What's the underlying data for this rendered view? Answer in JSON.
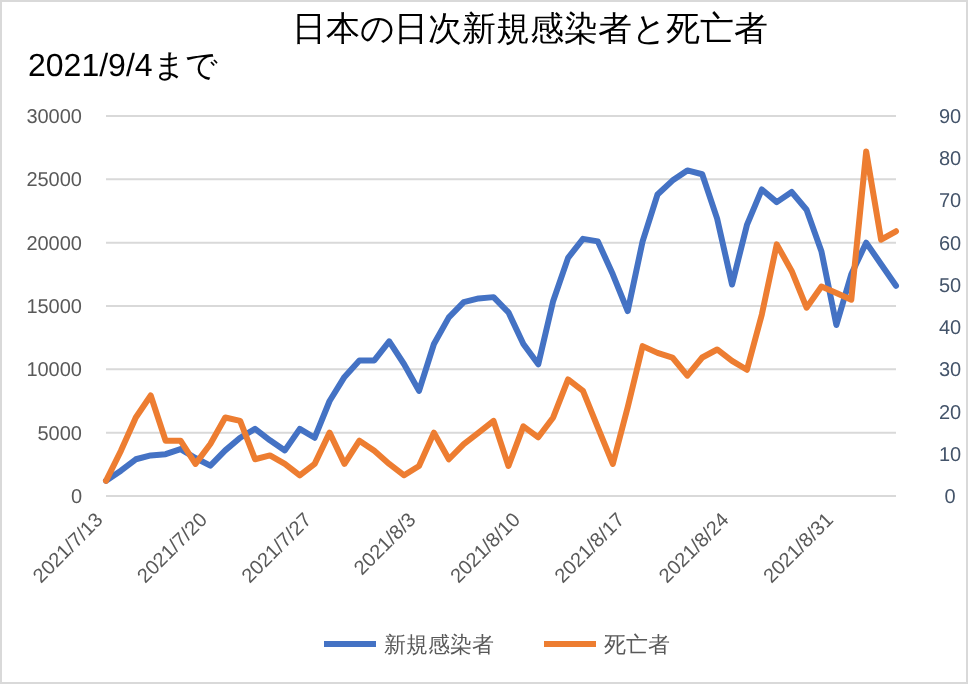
{
  "chart_data": {
    "type": "line",
    "title": "日本の日次新規感染者と死亡者",
    "subtitle": "2021/9/4まで",
    "x": [
      "2021-07-13",
      "2021-07-14",
      "2021-07-15",
      "2021-07-16",
      "2021-07-17",
      "2021-07-18",
      "2021-07-19",
      "2021-07-20",
      "2021-07-21",
      "2021-07-22",
      "2021-07-23",
      "2021-07-24",
      "2021-07-25",
      "2021-07-26",
      "2021-07-27",
      "2021-07-28",
      "2021-07-29",
      "2021-07-30",
      "2021-07-31",
      "2021-08-01",
      "2021-08-02",
      "2021-08-03",
      "2021-08-04",
      "2021-08-05",
      "2021-08-06",
      "2021-08-07",
      "2021-08-08",
      "2021-08-09",
      "2021-08-10",
      "2021-08-11",
      "2021-08-12",
      "2021-08-13",
      "2021-08-14",
      "2021-08-15",
      "2021-08-16",
      "2021-08-17",
      "2021-08-18",
      "2021-08-19",
      "2021-08-20",
      "2021-08-21",
      "2021-08-22",
      "2021-08-23",
      "2021-08-24",
      "2021-08-25",
      "2021-08-26",
      "2021-08-27",
      "2021-08-28",
      "2021-08-29",
      "2021-08-30",
      "2021-08-31",
      "2021-09-01",
      "2021-09-02",
      "2021-09-03",
      "2021-09-04"
    ],
    "series": [
      {
        "name": "新規感染者",
        "color": "#4472c4",
        "values": [
          1200,
          2000,
          2900,
          3200,
          3300,
          3700,
          3000,
          2400,
          3600,
          4600,
          5300,
          4400,
          3600,
          5300,
          4600,
          7500,
          9400,
          10700,
          10700,
          12200,
          10400,
          8300,
          12000,
          14100,
          15300,
          15600,
          15700,
          14500,
          12000,
          10400,
          15400,
          18800,
          20300,
          20100,
          17500,
          14600,
          20100,
          23800,
          24900,
          25700,
          25400,
          21900,
          16700,
          21400,
          24200,
          23200,
          24000,
          22600,
          19300,
          13500,
          17500,
          20000,
          18300,
          16600
        ]
      },
      {
        "name": "死亡者",
        "color": "#ed7d31",
        "axis": "y2",
        "values": [
          3.6,
          10.7,
          18.6,
          23.8,
          13.1,
          13.1,
          7.6,
          12.3,
          18.6,
          17.8,
          8.7,
          9.6,
          7.6,
          4.9,
          7.6,
          15,
          7.6,
          13.1,
          10.7,
          7.6,
          4.9,
          7.1,
          15,
          8.7,
          12.3,
          15,
          17.8,
          7.1,
          16.5,
          13.9,
          18.6,
          27.6,
          24.9,
          16.2,
          7.6,
          21,
          35.5,
          33.9,
          32.8,
          28.5,
          32.8,
          34.7,
          32,
          29.9,
          43,
          59.6,
          53.3,
          44.6,
          49.6,
          48.1,
          46.5,
          81.6,
          60.7,
          62.7
        ]
      }
    ],
    "xlim": [
      "2021-07-13",
      "2021-09-04"
    ],
    "xticks": [
      {
        "value": "2021-07-13",
        "label": "2021/7/13"
      },
      {
        "value": "2021-07-20",
        "label": "2021/7/20"
      },
      {
        "value": "2021-07-27",
        "label": "2021/7/27"
      },
      {
        "value": "2021-08-03",
        "label": "2021/8/3"
      },
      {
        "value": "2021-08-10",
        "label": "2021/8/10"
      },
      {
        "value": "2021-08-17",
        "label": "2021/8/17"
      },
      {
        "value": "2021-08-24",
        "label": "2021/8/24"
      },
      {
        "value": "2021-08-31",
        "label": "2021/8/31"
      }
    ],
    "ylim": [
      0,
      30000
    ],
    "yticks": [
      0,
      5000,
      10000,
      15000,
      20000,
      25000,
      30000
    ],
    "y2lim": [
      0,
      90
    ],
    "y2ticks": [
      0,
      10,
      20,
      30,
      40,
      50,
      60,
      70,
      80,
      90
    ],
    "grid": "y",
    "legend": "bottom",
    "marker": "none",
    "line_style": "solid"
  }
}
